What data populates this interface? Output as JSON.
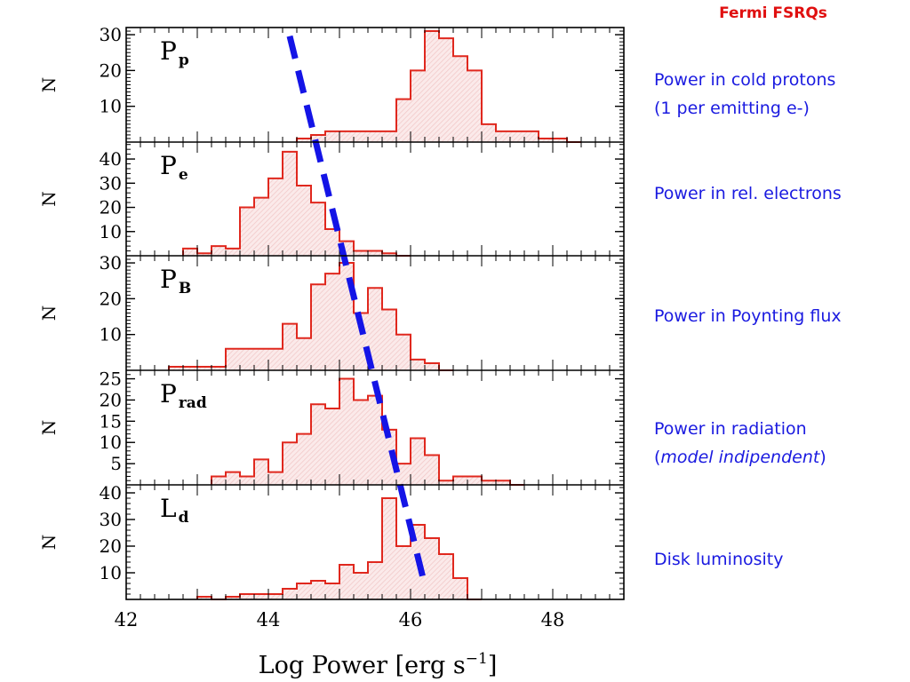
{
  "header_label": "Fermi FSRQs",
  "chart_data": {
    "type": "bar",
    "subtype": "stacked-panel-histograms",
    "xlabel": "Log Power [erg s",
    "xlabel_sup": "−1",
    "xlabel_close": "]",
    "ylabel": "N",
    "xlim": [
      42,
      49
    ],
    "x_ticks": [
      42,
      44,
      46,
      48
    ],
    "x_tick_labels": [
      "42",
      "44",
      "46",
      "48"
    ],
    "bin_width": 0.2,
    "colors": {
      "histogram": "#e0281e",
      "fill": "#f2c9c9",
      "trend": "#1414e6",
      "side_text": "#1a1ae0",
      "header": "#e01010"
    },
    "panels": [
      {
        "label_main": "P",
        "label_sub": "p",
        "description": [
          "Power in cold protons",
          "(1 per emitting e-)"
        ],
        "description_style": "normal",
        "ylim": [
          0,
          32
        ],
        "y_ticks": [
          10,
          20,
          30
        ],
        "y_tick_labels": [
          "10",
          "20",
          "30"
        ],
        "x": [
          44.4,
          44.6,
          44.8,
          45.0,
          45.2,
          45.4,
          45.6,
          45.8,
          46.0,
          46.2,
          46.4,
          46.6,
          46.8,
          47.0,
          47.2,
          47.4,
          47.6,
          47.8,
          48.0,
          48.2
        ],
        "counts": [
          1,
          2,
          3,
          3,
          3,
          3,
          3,
          12,
          20,
          31,
          29,
          24,
          20,
          5,
          3,
          3,
          3,
          1,
          1,
          0
        ]
      },
      {
        "label_main": "P",
        "label_sub": "e",
        "description": [
          "Power in rel. electrons"
        ],
        "description_style": "normal",
        "ylim": [
          0,
          47
        ],
        "y_ticks": [
          10,
          20,
          30,
          40
        ],
        "y_tick_labels": [
          "10",
          "20",
          "30",
          "40"
        ],
        "x": [
          42.8,
          43.0,
          43.2,
          43.4,
          43.6,
          43.8,
          44.0,
          44.2,
          44.4,
          44.6,
          44.8,
          45.0,
          45.2,
          45.4,
          45.6,
          45.8
        ],
        "counts": [
          3,
          1,
          4,
          3,
          20,
          24,
          32,
          43,
          29,
          22,
          11,
          6,
          2,
          2,
          1,
          0
        ]
      },
      {
        "label_main": "P",
        "label_sub": "B",
        "description": [
          "Power in Poynting flux"
        ],
        "description_style": "normal",
        "ylim": [
          0,
          32
        ],
        "y_ticks": [
          10,
          20,
          30
        ],
        "y_tick_labels": [
          "10",
          "20",
          "30"
        ],
        "x": [
          42.6,
          42.8,
          43.0,
          43.2,
          43.4,
          43.6,
          43.8,
          44.0,
          44.2,
          44.4,
          44.6,
          44.8,
          45.0,
          45.2,
          45.4,
          45.6,
          45.8,
          46.0,
          46.2,
          46.4
        ],
        "counts": [
          1,
          1,
          1,
          1,
          6,
          6,
          6,
          6,
          13,
          9,
          24,
          27,
          30,
          16,
          23,
          17,
          10,
          3,
          2,
          0
        ]
      },
      {
        "label_main": "P",
        "label_sub": "rad",
        "description": [
          "Power in radiation",
          "(model indipendent)"
        ],
        "description_style": "italic-paren",
        "ylim": [
          0,
          27
        ],
        "y_ticks": [
          5,
          10,
          15,
          20,
          25
        ],
        "y_tick_labels": [
          "5",
          "10",
          "15",
          "20",
          "25"
        ],
        "x": [
          43.2,
          43.4,
          43.6,
          43.8,
          44.0,
          44.2,
          44.4,
          44.6,
          44.8,
          45.0,
          45.2,
          45.4,
          45.6,
          45.8,
          46.0,
          46.2,
          46.4,
          46.6,
          46.8,
          47.0,
          47.2,
          47.4
        ],
        "counts": [
          2,
          3,
          2,
          6,
          3,
          10,
          12,
          19,
          18,
          25,
          20,
          21,
          13,
          5,
          11,
          7,
          1,
          2,
          2,
          1,
          1,
          0
        ]
      },
      {
        "label_main": "L",
        "label_sub": "d",
        "description": [
          "Disk luminosity"
        ],
        "description_style": "normal",
        "ylim": [
          0,
          43
        ],
        "y_ticks": [
          10,
          20,
          30,
          40
        ],
        "y_tick_labels": [
          "10",
          "20",
          "30",
          "40"
        ],
        "x": [
          43.0,
          43.2,
          43.4,
          43.6,
          43.8,
          44.0,
          44.2,
          44.4,
          44.6,
          44.8,
          45.0,
          45.2,
          45.4,
          45.6,
          45.8,
          46.0,
          46.2,
          46.4,
          46.6,
          46.8
        ],
        "counts": [
          1,
          0,
          1,
          2,
          2,
          2,
          4,
          6,
          7,
          6,
          13,
          10,
          14,
          38,
          20,
          28,
          23,
          17,
          8,
          0
        ]
      }
    ],
    "trend_line": {
      "x": [
        44.3,
        46.2
      ],
      "y_fraction_of_stack": [
        0.015,
        0.975
      ]
    }
  }
}
